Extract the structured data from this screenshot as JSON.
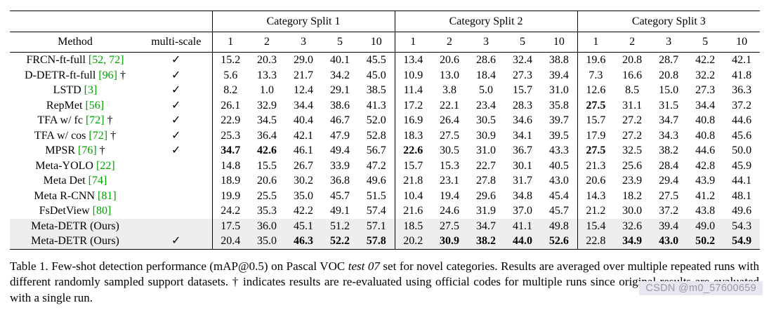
{
  "table": {
    "groups": [
      {
        "label": "Category Split 1"
      },
      {
        "label": "Category Split 2"
      },
      {
        "label": "Category Split 3"
      }
    ],
    "method_header": "Method",
    "multiscale_header": "multi-scale",
    "shot_headers": [
      "1",
      "2",
      "3",
      "5",
      "10"
    ],
    "checkmark_symbol": "✓",
    "dagger_symbol": "†",
    "rows": [
      {
        "method": "FRCN-ft-full",
        "cite": "[52, 72]",
        "dagger": false,
        "multiscale": true,
        "highlight": false,
        "values": [
          "15.2",
          "20.3",
          "29.0",
          "40.1",
          "45.5",
          "13.4",
          "20.6",
          "28.6",
          "32.4",
          "38.8",
          "19.6",
          "20.8",
          "28.7",
          "42.2",
          "42.1"
        ],
        "bold": []
      },
      {
        "method": "D-DETR-ft-full",
        "cite": "[96]",
        "dagger": true,
        "multiscale": true,
        "highlight": false,
        "values": [
          "5.6",
          "13.3",
          "21.7",
          "34.2",
          "45.0",
          "10.9",
          "13.0",
          "18.4",
          "27.3",
          "39.4",
          "7.3",
          "16.6",
          "20.8",
          "32.2",
          "41.8"
        ],
        "bold": []
      },
      {
        "method": "LSTD",
        "cite": "[3]",
        "dagger": false,
        "multiscale": true,
        "highlight": false,
        "values": [
          "8.2",
          "1.0",
          "12.4",
          "29.1",
          "38.5",
          "11.4",
          "3.8",
          "5.0",
          "15.7",
          "31.0",
          "12.6",
          "8.5",
          "15.0",
          "27.3",
          "36.3"
        ],
        "bold": []
      },
      {
        "method": "RepMet",
        "cite": "[56]",
        "dagger": false,
        "multiscale": true,
        "highlight": false,
        "values": [
          "26.1",
          "32.9",
          "34.4",
          "38.6",
          "41.3",
          "17.2",
          "22.1",
          "23.4",
          "28.3",
          "35.8",
          "27.5",
          "31.1",
          "31.5",
          "34.4",
          "37.2"
        ],
        "bold": [
          10
        ]
      },
      {
        "method": "TFA w/ fc",
        "cite": "[72]",
        "dagger": true,
        "multiscale": true,
        "highlight": false,
        "values": [
          "22.9",
          "34.5",
          "40.4",
          "46.7",
          "52.0",
          "16.9",
          "26.4",
          "30.5",
          "34.6",
          "39.7",
          "15.7",
          "27.2",
          "34.7",
          "40.8",
          "44.6"
        ],
        "bold": []
      },
      {
        "method": "TFA w/ cos",
        "cite": "[72]",
        "dagger": true,
        "multiscale": true,
        "highlight": false,
        "values": [
          "25.3",
          "36.4",
          "42.1",
          "47.9",
          "52.8",
          "18.3",
          "27.5",
          "30.9",
          "34.1",
          "39.5",
          "17.9",
          "27.2",
          "34.3",
          "40.8",
          "45.6"
        ],
        "bold": []
      },
      {
        "method": "MPSR",
        "cite": "[76]",
        "dagger": true,
        "multiscale": true,
        "highlight": false,
        "values": [
          "34.7",
          "42.6",
          "46.1",
          "49.4",
          "56.7",
          "22.6",
          "30.5",
          "31.0",
          "36.7",
          "43.3",
          "27.5",
          "32.5",
          "38.2",
          "44.6",
          "50.0"
        ],
        "bold": [
          0,
          1,
          5,
          10
        ]
      },
      {
        "method": "Meta-YOLO",
        "cite": "[22]",
        "dagger": false,
        "multiscale": false,
        "highlight": false,
        "values": [
          "14.8",
          "15.5",
          "26.7",
          "33.9",
          "47.2",
          "15.7",
          "15.3",
          "22.7",
          "30.1",
          "40.5",
          "21.3",
          "25.6",
          "28.4",
          "42.8",
          "45.9"
        ],
        "bold": []
      },
      {
        "method": "Meta Det",
        "cite": "[74]",
        "dagger": false,
        "multiscale": false,
        "highlight": false,
        "values": [
          "18.9",
          "20.6",
          "30.2",
          "36.8",
          "49.6",
          "21.8",
          "23.1",
          "27.8",
          "31.7",
          "43.0",
          "20.6",
          "23.9",
          "29.4",
          "43.9",
          "44.1"
        ],
        "bold": []
      },
      {
        "method": "Meta R-CNN",
        "cite": "[81]",
        "dagger": false,
        "multiscale": false,
        "highlight": false,
        "values": [
          "19.9",
          "25.5",
          "35.0",
          "45.7",
          "51.5",
          "10.4",
          "19.4",
          "29.6",
          "34.8",
          "45.4",
          "14.3",
          "18.2",
          "27.5",
          "41.2",
          "48.1"
        ],
        "bold": []
      },
      {
        "method": "FsDetView",
        "cite": "[80]",
        "dagger": false,
        "multiscale": false,
        "highlight": false,
        "values": [
          "24.2",
          "35.3",
          "42.2",
          "49.1",
          "57.4",
          "21.6",
          "24.6",
          "31.9",
          "37.0",
          "45.7",
          "21.2",
          "30.0",
          "37.2",
          "43.8",
          "49.6"
        ],
        "bold": []
      },
      {
        "method": "Meta-DETR (Ours)",
        "cite": "",
        "dagger": false,
        "multiscale": false,
        "highlight": true,
        "values": [
          "17.5",
          "36.0",
          "45.1",
          "51.2",
          "57.1",
          "18.5",
          "27.5",
          "34.7",
          "41.1",
          "49.8",
          "15.4",
          "32.6",
          "39.4",
          "49.0",
          "54.3"
        ],
        "bold": []
      },
      {
        "method": "Meta-DETR (Ours)",
        "cite": "",
        "dagger": false,
        "multiscale": true,
        "highlight": true,
        "values": [
          "20.4",
          "35.0",
          "46.3",
          "52.2",
          "57.8",
          "20.2",
          "30.9",
          "38.2",
          "44.0",
          "52.6",
          "22.8",
          "34.9",
          "43.0",
          "50.2",
          "54.9"
        ],
        "bold": [
          2,
          3,
          4,
          6,
          7,
          8,
          9,
          11,
          12,
          13,
          14
        ]
      }
    ]
  },
  "caption": {
    "segments": [
      {
        "text": "Table 1. Few-shot detection performance (mAP@0.5) on Pascal VOC ",
        "italic": false
      },
      {
        "text": "test 07",
        "italic": true
      },
      {
        "text": " set for novel categories. Results are averaged over multiple repeated runs with different randomly sampled support datasets. † indicates results are re-evaluated using official codes for multiple runs since original results are evaluated with a single run.",
        "italic": false
      }
    ]
  },
  "watermark": "CSDN @m0_57600659",
  "colors": {
    "citation_green": "#00a000",
    "highlight_row": "#eeeeee",
    "watermark_bg": "#e8e6f3",
    "watermark_text": "#9a99a3"
  }
}
